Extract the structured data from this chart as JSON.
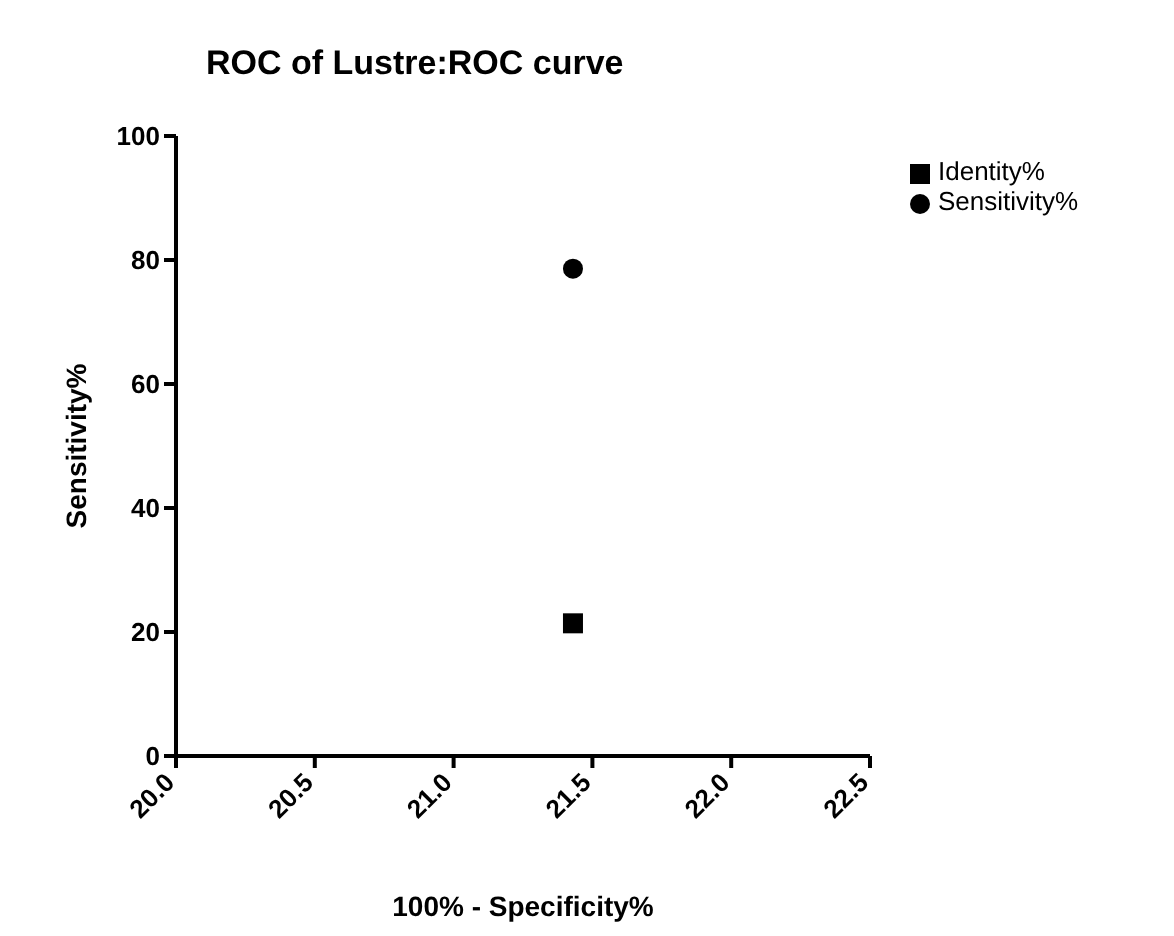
{
  "chart_data": {
    "type": "scatter",
    "title": "ROC of Lustre:ROC curve",
    "xlabel": "100% - Specificity%",
    "ylabel": "Sensitivity%",
    "series": [
      {
        "name": "Sensitivity%",
        "color": "#000000",
        "marker": "circle",
        "x": [
          21.43
        ],
        "values": [
          78.6
        ]
      },
      {
        "name": "Identity%",
        "color": "#000000",
        "marker": "square",
        "x": [
          21.43
        ],
        "values": [
          21.4
        ]
      }
    ],
    "xlim": [
      20.0,
      22.5
    ],
    "xticks": [
      {
        "value": 20.0,
        "label": "20.0"
      },
      {
        "value": 20.5,
        "label": "20.5"
      },
      {
        "value": 21.0,
        "label": "21.0"
      },
      {
        "value": 21.5,
        "label": "21.5"
      },
      {
        "value": 22.0,
        "label": "22.0"
      },
      {
        "value": 22.5,
        "label": "22.5"
      }
    ],
    "ylim": [
      0,
      100
    ],
    "yticks": [
      0,
      20,
      40,
      60,
      80,
      100
    ],
    "grid": false,
    "legend": "top right"
  }
}
